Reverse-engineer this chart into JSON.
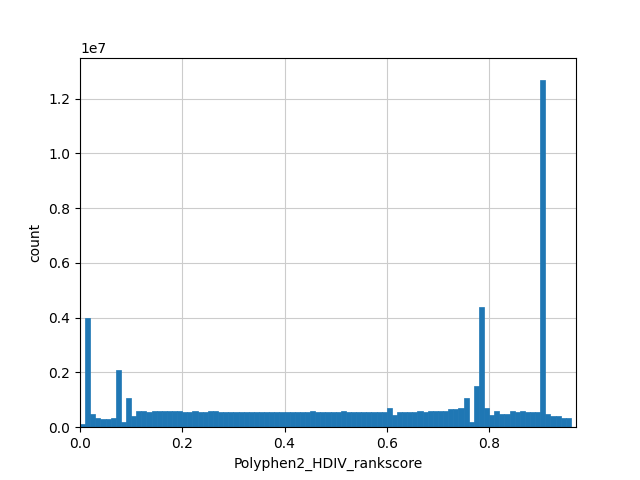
{
  "xlabel": "Polyphen2_HDIV_rankscore",
  "ylabel": "count",
  "bar_color": "#1f77b4",
  "xlim": [
    0.0,
    0.97
  ],
  "ylim": [
    0,
    13500000.0
  ],
  "bin_edges": [
    0.0,
    0.01,
    0.02,
    0.03,
    0.04,
    0.05,
    0.06,
    0.07,
    0.08,
    0.09,
    0.1,
    0.11,
    0.12,
    0.13,
    0.14,
    0.15,
    0.16,
    0.17,
    0.18,
    0.19,
    0.2,
    0.21,
    0.22,
    0.23,
    0.24,
    0.25,
    0.26,
    0.27,
    0.28,
    0.29,
    0.3,
    0.31,
    0.32,
    0.33,
    0.34,
    0.35,
    0.36,
    0.37,
    0.38,
    0.39,
    0.4,
    0.41,
    0.42,
    0.43,
    0.44,
    0.45,
    0.46,
    0.47,
    0.48,
    0.49,
    0.5,
    0.51,
    0.52,
    0.53,
    0.54,
    0.55,
    0.56,
    0.57,
    0.58,
    0.59,
    0.6,
    0.61,
    0.62,
    0.63,
    0.64,
    0.65,
    0.66,
    0.67,
    0.68,
    0.69,
    0.7,
    0.71,
    0.72,
    0.73,
    0.74,
    0.75,
    0.76,
    0.77,
    0.78,
    0.79,
    0.8,
    0.81,
    0.82,
    0.83,
    0.84,
    0.85,
    0.86,
    0.87,
    0.88,
    0.89,
    0.9,
    0.91,
    0.92,
    0.93,
    0.94,
    0.95,
    0.96
  ],
  "counts": [
    100000,
    4000000,
    500000,
    350000,
    300000,
    300000,
    350000,
    2100000,
    200000,
    1050000,
    400000,
    600000,
    600000,
    550000,
    600000,
    600000,
    600000,
    600000,
    600000,
    600000,
    550000,
    550000,
    600000,
    550000,
    550000,
    600000,
    600000,
    550000,
    550000,
    550000,
    550000,
    550000,
    550000,
    550000,
    550000,
    550000,
    550000,
    550000,
    550000,
    550000,
    550000,
    550000,
    550000,
    550000,
    550000,
    600000,
    550000,
    550000,
    550000,
    550000,
    550000,
    600000,
    550000,
    550000,
    550000,
    550000,
    550000,
    550000,
    550000,
    550000,
    700000,
    450000,
    550000,
    550000,
    550000,
    550000,
    600000,
    550000,
    600000,
    600000,
    600000,
    600000,
    650000,
    650000,
    700000,
    1050000,
    200000,
    1500000,
    4400000,
    700000,
    450000,
    600000,
    500000,
    500000,
    600000,
    550000,
    600000,
    550000,
    550000,
    550000,
    12700000,
    500000,
    400000,
    400000,
    350000,
    350000
  ],
  "figsize": [
    6.4,
    4.8
  ],
  "dpi": 100,
  "yticks": [
    0,
    2000000,
    4000000,
    6000000,
    8000000,
    10000000,
    12000000
  ],
  "yticklabels": [
    "0",
    "0.2",
    "0.4",
    "0.6",
    "0.8",
    "1.0",
    "1.2"
  ],
  "xticks": [
    0.0,
    0.2,
    0.4,
    0.6,
    0.8
  ]
}
